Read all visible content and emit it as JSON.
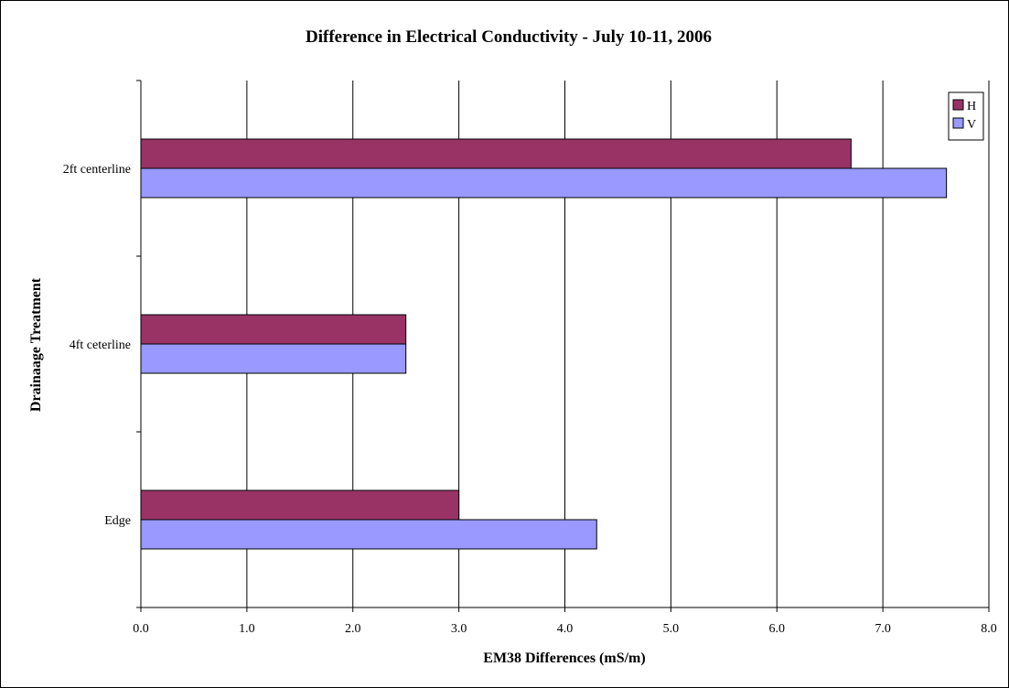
{
  "chart_data": {
    "type": "bar",
    "orientation": "horizontal",
    "title": "Difference in Electrical Conductivity - July 10-11, 2006",
    "xlabel": "EM38 Differences (mS/m)",
    "ylabel": "Drainaage Treatment",
    "categories": [
      "2ft centerline",
      "4ft ceterline",
      "Edge"
    ],
    "series": [
      {
        "name": "H",
        "color": "#993366",
        "values": [
          6.7,
          2.5,
          3.0
        ]
      },
      {
        "name": "V",
        "color": "#9999ff",
        "values": [
          7.6,
          2.5,
          4.3
        ]
      }
    ],
    "xlim": [
      0,
      8
    ],
    "xticks": [
      "0.0",
      "1.0",
      "2.0",
      "3.0",
      "4.0",
      "5.0",
      "6.0",
      "7.0",
      "8.0"
    ],
    "grid": "vertical",
    "legend": "top-right"
  }
}
